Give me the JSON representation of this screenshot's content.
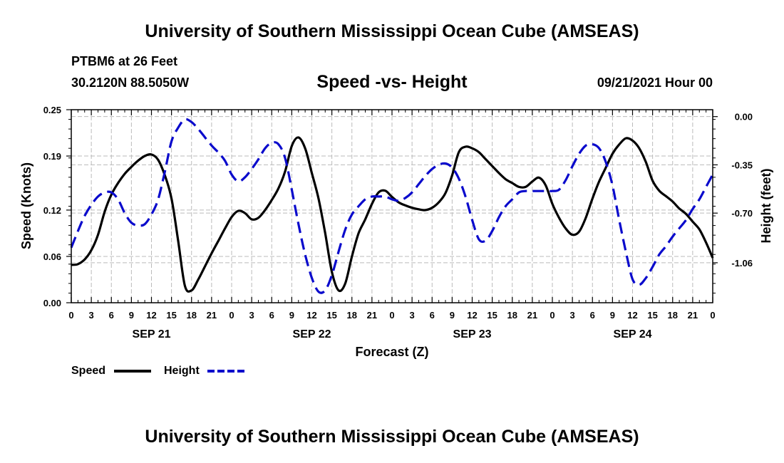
{
  "header": {
    "title": "University of Southern Mississippi Ocean Cube (AMSEAS)",
    "station": "PTBM6 at 26 Feet",
    "coords": "30.2120N  88.5050W",
    "chart_title": "Speed -vs- Height",
    "date_hour": "09/21/2021 Hour 00"
  },
  "footer": {
    "title": "University of Southern Mississippi Ocean Cube (AMSEAS)"
  },
  "colors": {
    "speed": "#000000",
    "height": "#0a0acc",
    "grid": "#bbbbbb"
  },
  "chart_data": {
    "type": "line",
    "title": "Speed -vs- Height",
    "xlabel": "Forecast (Z)",
    "ylabel": "Speed (Knots)",
    "y2label": "Height (feet)",
    "x_ticks": [
      "0",
      "3",
      "6",
      "9",
      "12",
      "15",
      "18",
      "21",
      "0",
      "3",
      "6",
      "9",
      "12",
      "15",
      "18",
      "21",
      "0",
      "3",
      "6",
      "9",
      "12",
      "15",
      "18",
      "21",
      "0",
      "3",
      "6",
      "9",
      "12",
      "15",
      "18",
      "21",
      "0"
    ],
    "x_range_hours": [
      0,
      96
    ],
    "day_labels": [
      {
        "label": "SEP 21",
        "hour": 12
      },
      {
        "label": "SEP 22",
        "hour": 36
      },
      {
        "label": "SEP 23",
        "hour": 60
      },
      {
        "label": "SEP 24",
        "hour": 84
      }
    ],
    "y_ticks": [
      "0.00",
      "0.06",
      "0.12",
      "0.19",
      "0.25"
    ],
    "ylim": [
      0,
      0.25
    ],
    "y2_ticks": [
      "0.00",
      "-0.35",
      "-0.70",
      "-1.06"
    ],
    "y2lim": [
      -1.35,
      0.05
    ],
    "grid": true,
    "series": [
      {
        "name": "Speed",
        "axis": "left",
        "style": "solid",
        "points": [
          [
            0,
            0.049
          ],
          [
            1,
            0.05
          ],
          [
            2,
            0.056
          ],
          [
            3,
            0.068
          ],
          [
            4,
            0.088
          ],
          [
            5,
            0.118
          ],
          [
            6,
            0.14
          ],
          [
            7,
            0.155
          ],
          [
            8,
            0.167
          ],
          [
            9,
            0.176
          ],
          [
            10,
            0.184
          ],
          [
            11,
            0.19
          ],
          [
            12,
            0.192
          ],
          [
            13,
            0.185
          ],
          [
            14,
            0.165
          ],
          [
            15,
            0.135
          ],
          [
            16,
            0.08
          ],
          [
            17,
            0.022
          ],
          [
            18,
            0.016
          ],
          [
            19,
            0.03
          ],
          [
            20,
            0.047
          ],
          [
            21,
            0.064
          ],
          [
            22,
            0.08
          ],
          [
            23,
            0.096
          ],
          [
            24,
            0.111
          ],
          [
            25,
            0.119
          ],
          [
            26,
            0.116
          ],
          [
            27,
            0.108
          ],
          [
            28,
            0.11
          ],
          [
            29,
            0.12
          ],
          [
            30,
            0.133
          ],
          [
            31,
            0.148
          ],
          [
            32,
            0.17
          ],
          [
            33,
            0.203
          ],
          [
            34,
            0.214
          ],
          [
            35,
            0.2
          ],
          [
            36,
            0.168
          ],
          [
            37,
            0.135
          ],
          [
            38,
            0.09
          ],
          [
            39,
            0.04
          ],
          [
            40,
            0.016
          ],
          [
            41,
            0.025
          ],
          [
            42,
            0.06
          ],
          [
            43,
            0.09
          ],
          [
            44,
            0.108
          ],
          [
            45,
            0.128
          ],
          [
            46,
            0.143
          ],
          [
            47,
            0.145
          ],
          [
            48,
            0.137
          ],
          [
            49,
            0.13
          ],
          [
            50,
            0.126
          ],
          [
            51,
            0.123
          ],
          [
            52,
            0.121
          ],
          [
            53,
            0.12
          ],
          [
            54,
            0.123
          ],
          [
            55,
            0.13
          ],
          [
            56,
            0.142
          ],
          [
            57,
            0.165
          ],
          [
            58,
            0.195
          ],
          [
            59,
            0.202
          ],
          [
            60,
            0.2
          ],
          [
            61,
            0.195
          ],
          [
            62,
            0.186
          ],
          [
            63,
            0.177
          ],
          [
            64,
            0.168
          ],
          [
            65,
            0.16
          ],
          [
            66,
            0.155
          ],
          [
            67,
            0.15
          ],
          [
            68,
            0.15
          ],
          [
            69,
            0.157
          ],
          [
            70,
            0.162
          ],
          [
            71,
            0.152
          ],
          [
            72,
            0.128
          ],
          [
            73,
            0.11
          ],
          [
            74,
            0.096
          ],
          [
            75,
            0.088
          ],
          [
            76,
            0.092
          ],
          [
            77,
            0.11
          ],
          [
            78,
            0.135
          ],
          [
            79,
            0.157
          ],
          [
            80,
            0.175
          ],
          [
            81,
            0.193
          ],
          [
            82,
            0.205
          ],
          [
            83,
            0.213
          ],
          [
            84,
            0.21
          ],
          [
            85,
            0.2
          ],
          [
            86,
            0.182
          ],
          [
            87,
            0.158
          ],
          [
            88,
            0.145
          ],
          [
            89,
            0.138
          ],
          [
            90,
            0.131
          ],
          [
            91,
            0.122
          ],
          [
            92,
            0.115
          ],
          [
            93,
            0.105
          ],
          [
            94,
            0.095
          ],
          [
            95,
            0.078
          ],
          [
            96,
            0.058
          ]
        ]
      },
      {
        "name": "Height",
        "axis": "right",
        "style": "dashed",
        "points": [
          [
            0,
            -0.95
          ],
          [
            1,
            -0.83
          ],
          [
            2,
            -0.72
          ],
          [
            3,
            -0.64
          ],
          [
            4,
            -0.58
          ],
          [
            5,
            -0.55
          ],
          [
            6,
            -0.55
          ],
          [
            7,
            -0.6
          ],
          [
            8,
            -0.7
          ],
          [
            9,
            -0.77
          ],
          [
            10,
            -0.79
          ],
          [
            11,
            -0.78
          ],
          [
            12,
            -0.71
          ],
          [
            13,
            -0.6
          ],
          [
            14,
            -0.4
          ],
          [
            15,
            -0.18
          ],
          [
            16,
            -0.08
          ],
          [
            17,
            -0.02
          ],
          [
            18,
            -0.04
          ],
          [
            19,
            -0.09
          ],
          [
            20,
            -0.15
          ],
          [
            21,
            -0.21
          ],
          [
            22,
            -0.26
          ],
          [
            23,
            -0.32
          ],
          [
            24,
            -0.42
          ],
          [
            25,
            -0.47
          ],
          [
            26,
            -0.44
          ],
          [
            27,
            -0.38
          ],
          [
            28,
            -0.31
          ],
          [
            29,
            -0.23
          ],
          [
            30,
            -0.19
          ],
          [
            31,
            -0.2
          ],
          [
            32,
            -0.3
          ],
          [
            33,
            -0.53
          ],
          [
            34,
            -0.78
          ],
          [
            35,
            -1.0
          ],
          [
            36,
            -1.17
          ],
          [
            37,
            -1.27
          ],
          [
            38,
            -1.26
          ],
          [
            39,
            -1.15
          ],
          [
            40,
            -0.98
          ],
          [
            41,
            -0.82
          ],
          [
            42,
            -0.71
          ],
          [
            43,
            -0.65
          ],
          [
            44,
            -0.6
          ],
          [
            45,
            -0.58
          ],
          [
            46,
            -0.58
          ],
          [
            47,
            -0.58
          ],
          [
            48,
            -0.6
          ],
          [
            49,
            -0.61
          ],
          [
            50,
            -0.59
          ],
          [
            51,
            -0.55
          ],
          [
            52,
            -0.49
          ],
          [
            53,
            -0.43
          ],
          [
            54,
            -0.38
          ],
          [
            55,
            -0.35
          ],
          [
            56,
            -0.34
          ],
          [
            57,
            -0.37
          ],
          [
            58,
            -0.45
          ],
          [
            59,
            -0.58
          ],
          [
            60,
            -0.75
          ],
          [
            61,
            -0.89
          ],
          [
            62,
            -0.9
          ],
          [
            63,
            -0.83
          ],
          [
            64,
            -0.73
          ],
          [
            65,
            -0.65
          ],
          [
            66,
            -0.6
          ],
          [
            67,
            -0.55
          ],
          [
            68,
            -0.54
          ],
          [
            69,
            -0.54
          ],
          [
            70,
            -0.54
          ],
          [
            71,
            -0.54
          ],
          [
            72,
            -0.54
          ],
          [
            73,
            -0.53
          ],
          [
            74,
            -0.46
          ],
          [
            75,
            -0.36
          ],
          [
            76,
            -0.27
          ],
          [
            77,
            -0.21
          ],
          [
            78,
            -0.2
          ],
          [
            79,
            -0.23
          ],
          [
            80,
            -0.33
          ],
          [
            81,
            -0.5
          ],
          [
            82,
            -0.75
          ],
          [
            83,
            -0.98
          ],
          [
            84,
            -1.18
          ],
          [
            85,
            -1.22
          ],
          [
            86,
            -1.17
          ],
          [
            87,
            -1.09
          ],
          [
            88,
            -1.0
          ],
          [
            89,
            -0.94
          ],
          [
            90,
            -0.87
          ],
          [
            91,
            -0.81
          ],
          [
            92,
            -0.75
          ],
          [
            93,
            -0.67
          ],
          [
            94,
            -0.6
          ],
          [
            95,
            -0.51
          ],
          [
            96,
            -0.42
          ]
        ]
      }
    ],
    "legend": [
      {
        "label": "Speed",
        "style": "solid"
      },
      {
        "label": "Height",
        "style": "dashed"
      }
    ]
  }
}
